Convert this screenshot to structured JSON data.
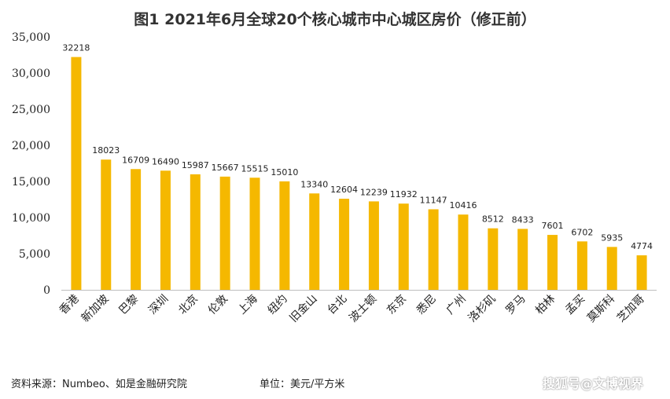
{
  "chart_data": {
    "type": "bar",
    "title": "图1 2021年6月全球20个核心城市中心城区房价（修正前）",
    "categories": [
      "香港",
      "新加坡",
      "巴黎",
      "深圳",
      "北京",
      "伦敦",
      "上海",
      "纽约",
      "旧金山",
      "台北",
      "波士顿",
      "东京",
      "悉尼",
      "广州",
      "洛杉矶",
      "罗马",
      "柏林",
      "孟买",
      "莫斯科",
      "芝加哥"
    ],
    "values": [
      32218,
      18023,
      16709,
      16490,
      15987,
      15667,
      15515,
      15010,
      13340,
      12604,
      12239,
      11932,
      11147,
      10416,
      8512,
      8433,
      7601,
      6702,
      5935,
      4774
    ],
    "ylim": [
      0,
      35000
    ],
    "yticks": [
      "0",
      "5,000",
      "10,000",
      "15,000",
      "20,000",
      "25,000",
      "30,000",
      "35,000"
    ],
    "bar_color": "#F5B800",
    "grid": false,
    "legend": "none"
  },
  "footer": {
    "source": "资料来源：Numbeo、如是金融研究院",
    "unit": "单位：美元/平方米",
    "watermark": "搜狐号@文博视界"
  }
}
